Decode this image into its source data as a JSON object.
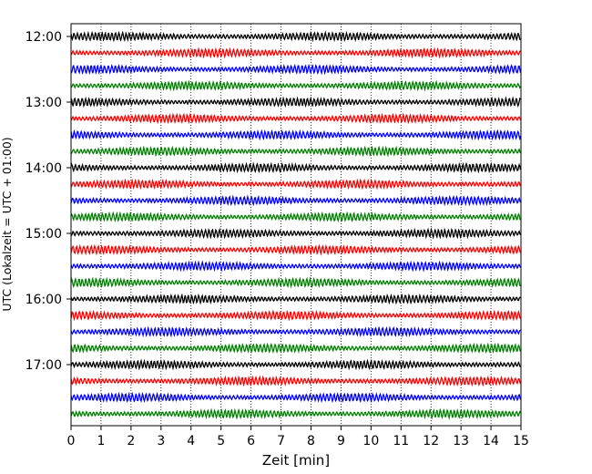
{
  "chart_data": {
    "type": "line",
    "title": "",
    "xlabel": "Zeit  [min]",
    "ylabel": "UTC (Lokalzeit = UTC + 01:00)",
    "xlim": [
      0,
      15
    ],
    "x_ticks": [
      "0",
      "1",
      "2",
      "3",
      "4",
      "5",
      "6",
      "7",
      "8",
      "9",
      "10",
      "11",
      "12",
      "13",
      "14",
      "15"
    ],
    "hour_labels": [
      "12:00",
      "13:00",
      "14:00",
      "15:00",
      "16:00",
      "17:00"
    ],
    "trace_colors": [
      "#000000",
      "#ff0000",
      "#0000ff",
      "#008000"
    ],
    "trace_start_times": [
      "12:00",
      "12:15",
      "12:30",
      "12:45",
      "13:00",
      "13:15",
      "13:30",
      "13:45",
      "14:00",
      "14:15",
      "14:30",
      "14:45",
      "15:00",
      "15:15",
      "15:30",
      "15:45",
      "16:00",
      "16:15",
      "16:30",
      "16:45",
      "17:00",
      "17:15",
      "17:30",
      "17:45"
    ],
    "minutes_per_trace": 15,
    "vertical_grid": "dotted"
  }
}
